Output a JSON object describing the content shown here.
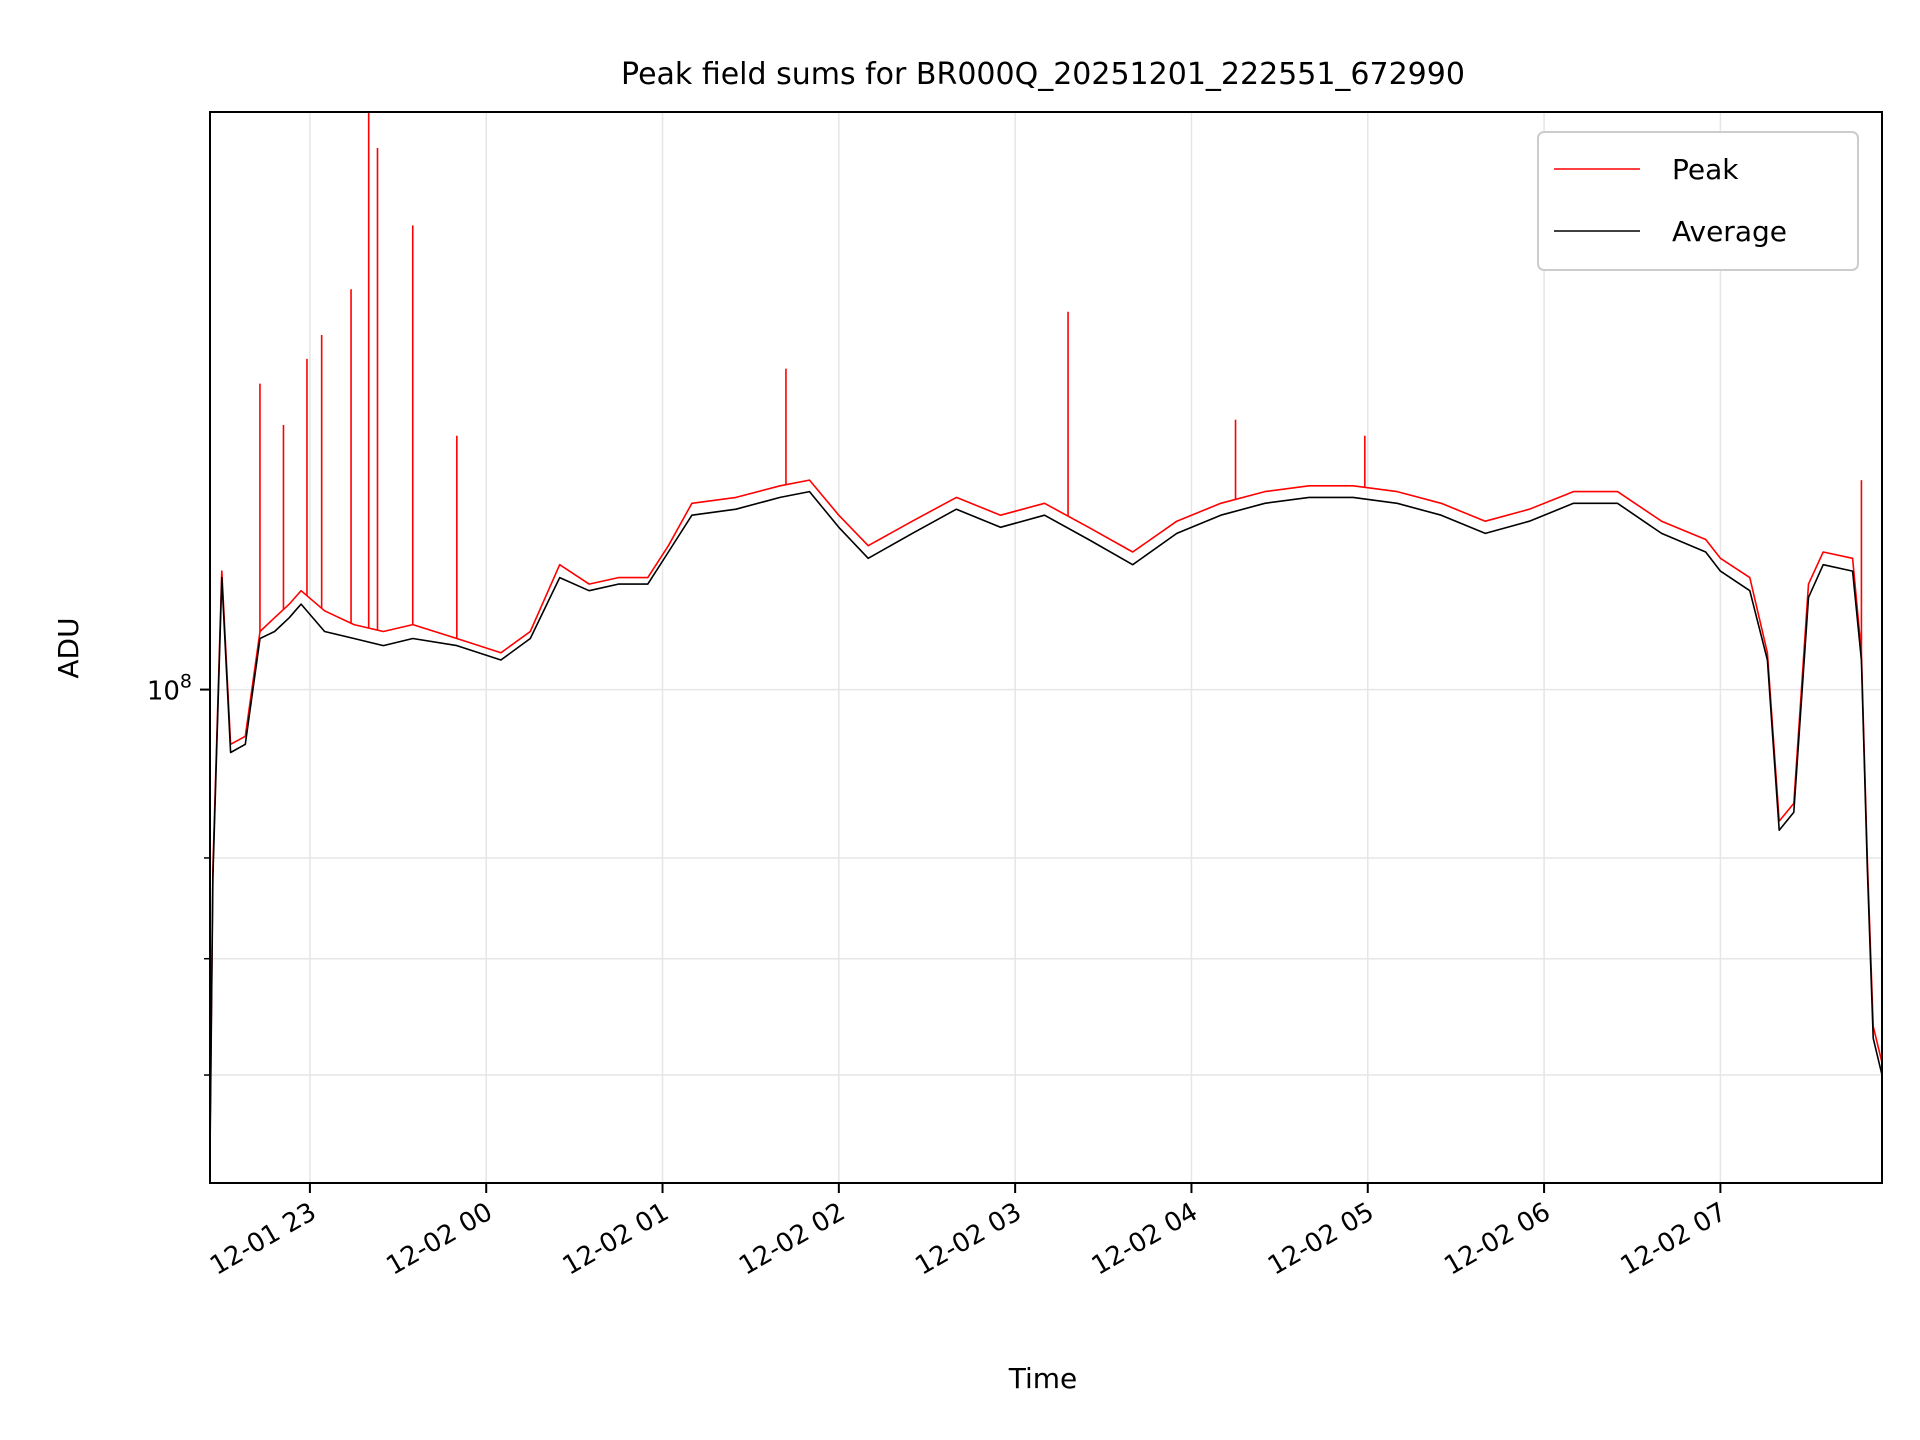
{
  "chart_data": {
    "type": "line",
    "title": "Peak field sums for BR000Q_20251201_222551_672990",
    "xlabel": "Time",
    "ylabel": "ADU",
    "yscale": "log",
    "grid": true,
    "legend_placement": "top-right",
    "x_tick_labels": [
      "12-01 23",
      "12-02 00",
      "12-02 01",
      "12-02 02",
      "12-02 03",
      "12-02 04",
      "12-02 05",
      "12-02 06",
      "12-02 07"
    ],
    "x_ticks": [
      "2025-12-01 23:00",
      "2025-12-02 00:00",
      "2025-12-02 01:00",
      "2025-12-02 02:00",
      "2025-12-02 03:00",
      "2025-12-02 04:00",
      "2025-12-02 05:00",
      "2025-12-02 06:00",
      "2025-12-02 07:00"
    ],
    "xlim": [
      "2025-12-01 22:26",
      "2025-12-02 07:55"
    ],
    "y_tick_label": "10^8",
    "y_ticks": [
      100000000
    ],
    "y_minor_ticks": [
      80000000,
      70000000,
      60000000
    ],
    "ylim": [
      52000000,
      215000000
    ],
    "series": [
      {
        "name": "Peak",
        "color": "#ff0000",
        "x": [
          "2025-12-01 22:26",
          "2025-12-01 22:27",
          "2025-12-01 22:30",
          "2025-12-01 22:33",
          "2025-12-01 22:38",
          "2025-12-01 22:43",
          "2025-12-01 22:48",
          "2025-12-01 22:53",
          "2025-12-01 22:55",
          "2025-12-01 22:57",
          "2025-12-01 23:05",
          "2025-12-01 23:15",
          "2025-12-01 23:25",
          "2025-12-01 23:35",
          "2025-12-01 23:50",
          "2025-12-02 00:05",
          "2025-12-02 00:15",
          "2025-12-02 00:25",
          "2025-12-02 00:35",
          "2025-12-02 00:45",
          "2025-12-02 00:55",
          "2025-12-02 01:02",
          "2025-12-02 01:10",
          "2025-12-02 01:25",
          "2025-12-02 01:40",
          "2025-12-02 01:50",
          "2025-12-02 02:00",
          "2025-12-02 02:10",
          "2025-12-02 02:25",
          "2025-12-02 02:40",
          "2025-12-02 02:55",
          "2025-12-02 03:10",
          "2025-12-02 03:25",
          "2025-12-02 03:40",
          "2025-12-02 03:55",
          "2025-12-02 04:10",
          "2025-12-02 04:25",
          "2025-12-02 04:40",
          "2025-12-02 04:55",
          "2025-12-02 05:10",
          "2025-12-02 05:25",
          "2025-12-02 05:40",
          "2025-12-02 05:55",
          "2025-12-02 06:10",
          "2025-12-02 06:25",
          "2025-12-02 06:40",
          "2025-12-02 06:55",
          "2025-12-02 07:00",
          "2025-12-02 07:10",
          "2025-12-02 07:16",
          "2025-12-02 07:20",
          "2025-12-02 07:25",
          "2025-12-02 07:30",
          "2025-12-02 07:35",
          "2025-12-02 07:45",
          "2025-12-02 07:48",
          "2025-12-02 07:50",
          "2025-12-02 07:52",
          "2025-12-02 07:55"
        ],
        "values": [
          55000000,
          79000000,
          117000000,
          93000000,
          94000000,
          108000000,
          110000000,
          112000000,
          113000000,
          114000000,
          111000000,
          109000000,
          108000000,
          109000000,
          107000000,
          105000000,
          108000000,
          118000000,
          115000000,
          116000000,
          116000000,
          121000000,
          128000000,
          129000000,
          131000000,
          132000000,
          126000000,
          121000000,
          125000000,
          129000000,
          126000000,
          128000000,
          124000000,
          120000000,
          125000000,
          128000000,
          130000000,
          131000000,
          131000000,
          130000000,
          128000000,
          125000000,
          127000000,
          130000000,
          130000000,
          125000000,
          122000000,
          119000000,
          116000000,
          105000000,
          84000000,
          86000000,
          115000000,
          120000000,
          119000000,
          105000000,
          80000000,
          64000000,
          61000000
        ]
      },
      {
        "name": "Average",
        "color": "#000000",
        "x": [
          "2025-12-01 22:26",
          "2025-12-01 22:27",
          "2025-12-01 22:30",
          "2025-12-01 22:33",
          "2025-12-01 22:38",
          "2025-12-01 22:43",
          "2025-12-01 22:48",
          "2025-12-01 22:53",
          "2025-12-01 22:55",
          "2025-12-01 22:57",
          "2025-12-01 23:05",
          "2025-12-01 23:15",
          "2025-12-01 23:25",
          "2025-12-01 23:35",
          "2025-12-01 23:50",
          "2025-12-02 00:05",
          "2025-12-02 00:15",
          "2025-12-02 00:25",
          "2025-12-02 00:35",
          "2025-12-02 00:45",
          "2025-12-02 00:55",
          "2025-12-02 01:02",
          "2025-12-02 01:10",
          "2025-12-02 01:25",
          "2025-12-02 01:40",
          "2025-12-02 01:50",
          "2025-12-02 02:00",
          "2025-12-02 02:10",
          "2025-12-02 02:25",
          "2025-12-02 02:40",
          "2025-12-02 02:55",
          "2025-12-02 03:10",
          "2025-12-02 03:25",
          "2025-12-02 03:40",
          "2025-12-02 03:55",
          "2025-12-02 04:10",
          "2025-12-02 04:25",
          "2025-12-02 04:40",
          "2025-12-02 04:55",
          "2025-12-02 05:10",
          "2025-12-02 05:25",
          "2025-12-02 05:40",
          "2025-12-02 05:55",
          "2025-12-02 06:10",
          "2025-12-02 06:25",
          "2025-12-02 06:40",
          "2025-12-02 06:55",
          "2025-12-02 07:00",
          "2025-12-02 07:10",
          "2025-12-02 07:16",
          "2025-12-02 07:20",
          "2025-12-02 07:25",
          "2025-12-02 07:30",
          "2025-12-02 07:35",
          "2025-12-02 07:45",
          "2025-12-02 07:48",
          "2025-12-02 07:50",
          "2025-12-02 07:52",
          "2025-12-02 07:55"
        ],
        "values": [
          54000000,
          78000000,
          116000000,
          92000000,
          93000000,
          107000000,
          108000000,
          110000000,
          111000000,
          112000000,
          108000000,
          107000000,
          106000000,
          107000000,
          106000000,
          104000000,
          107000000,
          116000000,
          114000000,
          115000000,
          115000000,
          120000000,
          126000000,
          127000000,
          129000000,
          130000000,
          124000000,
          119000000,
          123000000,
          127000000,
          124000000,
          126000000,
          122000000,
          118000000,
          123000000,
          126000000,
          128000000,
          129000000,
          129000000,
          128000000,
          126000000,
          123000000,
          125000000,
          128000000,
          128000000,
          123000000,
          120000000,
          117000000,
          114000000,
          104000000,
          83000000,
          85000000,
          113000000,
          118000000,
          117000000,
          104000000,
          79000000,
          63000000,
          60000000
        ]
      }
    ],
    "peak_spikes": [
      {
        "x": "2025-12-01 22:43",
        "value": 150000000
      },
      {
        "x": "2025-12-01 22:51",
        "value": 142000000
      },
      {
        "x": "2025-12-01 22:59",
        "value": 155000000
      },
      {
        "x": "2025-12-01 23:04",
        "value": 160000000
      },
      {
        "x": "2025-12-01 23:14",
        "value": 170000000
      },
      {
        "x": "2025-12-01 23:20",
        "value": 215000000
      },
      {
        "x": "2025-12-01 23:23",
        "value": 205000000
      },
      {
        "x": "2025-12-01 23:35",
        "value": 185000000
      },
      {
        "x": "2025-12-01 23:50",
        "value": 140000000
      },
      {
        "x": "2025-12-02 01:42",
        "value": 153000000
      },
      {
        "x": "2025-12-02 03:18",
        "value": 165000000
      },
      {
        "x": "2025-12-02 04:15",
        "value": 143000000
      },
      {
        "x": "2025-12-02 04:59",
        "value": 140000000
      },
      {
        "x": "2025-12-02 07:48",
        "value": 132000000
      }
    ]
  }
}
